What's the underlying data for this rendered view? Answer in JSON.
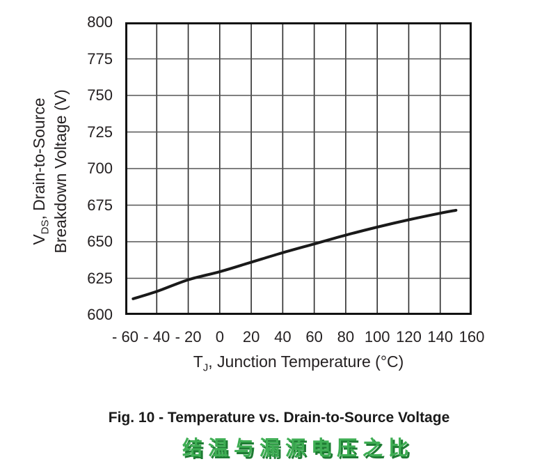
{
  "chart_data": {
    "type": "line",
    "title": "Fig. 10 - Temperature vs. Drain-to-Source Voltage",
    "subtitle_zh": "结温与漏源电压之比",
    "xlabel": "TJ, Junction Temperature (°C)",
    "ylabel": "VDS, Drain-to-Source Breakdown Voltage (V)",
    "xlabel_parts": {
      "var": "T",
      "sub": "J",
      "rest": ", Junction Temperature (°C)"
    },
    "ylabel_parts": {
      "var": "V",
      "sub": "DS",
      "line1_rest": ", Drain-to-Source",
      "line2": "Breakdown Voltage (V)"
    },
    "xlim": [
      -60,
      160
    ],
    "ylim": [
      600,
      800
    ],
    "xticks": [
      -60,
      -40,
      -20,
      0,
      20,
      40,
      60,
      80,
      100,
      120,
      140,
      160
    ],
    "xtick_labels": [
      "- 60",
      "- 40",
      "- 20",
      "0",
      "20",
      "40",
      "60",
      "80",
      "100",
      "120",
      "140",
      "160"
    ],
    "yticks": [
      600,
      625,
      650,
      675,
      700,
      725,
      750,
      775,
      800
    ],
    "ytick_labels": [
      "600",
      "625",
      "650",
      "675",
      "700",
      "725",
      "750",
      "775",
      "800"
    ],
    "grid": true,
    "series": [
      {
        "name": "VDS breakdown voltage vs temperature",
        "x": [
          -55,
          -40,
          -20,
          0,
          20,
          40,
          60,
          80,
          100,
          120,
          140,
          150
        ],
        "y": [
          611,
          616,
          624,
          629.5,
          636,
          642.5,
          648.5,
          654.5,
          660,
          665,
          669.5,
          671.5
        ]
      }
    ],
    "colors": {
      "curve": "#1a1a1a",
      "frame": "#111111",
      "grid_vertical": "#2b2b2b",
      "grid_horizontal": "#555555",
      "text": "#231f20",
      "subtitle_fill": "#3fae54",
      "subtitle_shadow": "#1e7c33"
    }
  }
}
